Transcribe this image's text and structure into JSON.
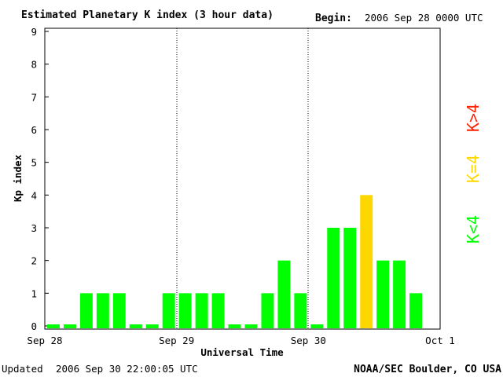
{
  "header": {
    "title": "Estimated Planetary K index (3 hour data)",
    "begin_label": "Begin:",
    "begin_value": "2006 Sep 28 0000 UTC"
  },
  "footer": {
    "updated_label": "Updated",
    "updated_value": "2006 Sep 30 22:00:05 UTC",
    "source": "NOAA/SEC Boulder, CO USA"
  },
  "legend": {
    "low": "K<4",
    "mid": "K=4",
    "high": "K>4"
  },
  "colors": {
    "low": "#00ff00",
    "mid": "#ffd700",
    "high": "#ff2000",
    "frame": "#000000"
  },
  "chart_data": {
    "type": "bar",
    "title": "Estimated Planetary K index (3 hour data)",
    "xlabel": "Universal Time",
    "ylabel": "Kp index",
    "ylim": [
      0,
      9
    ],
    "yticks": [
      "0",
      "1",
      "2",
      "3",
      "4",
      "5",
      "6",
      "7",
      "8",
      "9"
    ],
    "x_tick_labels": [
      "Sep 28",
      "Sep 29",
      "Sep 30",
      "Oct 1"
    ],
    "day_separators": "dotted lines at Sep 29 and Sep 30",
    "bins": [
      "Sep 28 00",
      "Sep 28 03",
      "Sep 28 06",
      "Sep 28 09",
      "Sep 28 12",
      "Sep 28 15",
      "Sep 28 18",
      "Sep 28 21",
      "Sep 29 00",
      "Sep 29 03",
      "Sep 29 06",
      "Sep 29 09",
      "Sep 29 12",
      "Sep 29 15",
      "Sep 29 18",
      "Sep 29 21",
      "Sep 30 00",
      "Sep 30 03",
      "Sep 30 06",
      "Sep 30 09",
      "Sep 30 12",
      "Sep 30 15",
      "Sep 30 18",
      "Sep 30 21"
    ],
    "values": [
      0,
      0,
      1,
      1,
      1,
      0,
      0,
      1,
      1,
      1,
      1,
      0,
      0,
      1,
      2,
      1,
      0,
      3,
      3,
      4,
      2,
      2,
      1,
      null
    ]
  }
}
